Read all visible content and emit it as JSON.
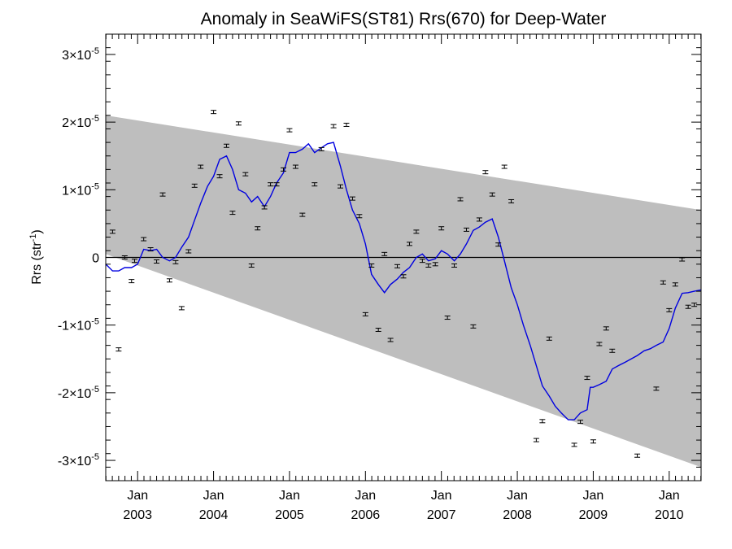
{
  "chart_data": {
    "type": "scatter",
    "title": "Anomaly in SeaWiFS(ST81) Rrs(670) for Deep-Water",
    "ylabel": "Rrs (str",
    "ylabel_exponent": "-1",
    "ylabel_close": ")",
    "y_unit": "1e-5",
    "ylim": [
      -3.3,
      3.3
    ],
    "xlim": [
      2002.58,
      2010.42
    ],
    "x_ticks_top": [
      "Jan",
      "Jan",
      "Jan",
      "Jan",
      "Jan",
      "Jan",
      "Jan",
      "Jan"
    ],
    "x_ticks_bottom": [
      "2003",
      "2004",
      "2005",
      "2006",
      "2007",
      "2008",
      "2009",
      "2010"
    ],
    "x_tick_values": [
      2003,
      2004,
      2005,
      2006,
      2007,
      2008,
      2009,
      2010
    ],
    "y_tick_values": [
      -3,
      -2,
      -1,
      0,
      1,
      2,
      3
    ],
    "y_tick_labels": [
      {
        "mant": "-3×10",
        "exp": "-5"
      },
      {
        "mant": "-2×10",
        "exp": "-5"
      },
      {
        "mant": "-1×10",
        "exp": "-5"
      },
      {
        "mant": "0",
        "exp": ""
      },
      {
        "mant": "1×10",
        "exp": "-5"
      },
      {
        "mant": "2×10",
        "exp": "-5"
      },
      {
        "mant": "3×10",
        "exp": "-5"
      }
    ],
    "band": {
      "upper": [
        [
          2002.58,
          2.1
        ],
        [
          2010.42,
          0.7
        ]
      ],
      "lower": [
        [
          2002.58,
          0.05
        ],
        [
          2010.42,
          -3.1
        ]
      ]
    },
    "colors": {
      "band": "#bebebe",
      "line": "#0000e0",
      "points": "#000000",
      "zero_line": "#000000"
    },
    "points": [
      [
        2002.67,
        0.38
      ],
      [
        2002.75,
        -1.36
      ],
      [
        2002.83,
        0.0
      ],
      [
        2002.92,
        -0.35
      ],
      [
        2002.96,
        -0.05
      ],
      [
        2003.08,
        0.27
      ],
      [
        2003.17,
        0.12
      ],
      [
        2003.25,
        -0.06
      ],
      [
        2003.33,
        0.93
      ],
      [
        2003.42,
        -0.34
      ],
      [
        2003.5,
        -0.07
      ],
      [
        2003.58,
        -0.75
      ],
      [
        2003.67,
        0.09
      ],
      [
        2003.75,
        1.06
      ],
      [
        2003.83,
        1.34
      ],
      [
        2004.0,
        2.15
      ],
      [
        2004.08,
        1.2
      ],
      [
        2004.17,
        1.65
      ],
      [
        2004.25,
        0.66
      ],
      [
        2004.33,
        1.98
      ],
      [
        2004.42,
        1.23
      ],
      [
        2004.5,
        -0.12
      ],
      [
        2004.58,
        0.43
      ],
      [
        2004.67,
        0.74
      ],
      [
        2004.75,
        1.08
      ],
      [
        2004.83,
        1.08
      ],
      [
        2004.92,
        1.3
      ],
      [
        2005.0,
        1.88
      ],
      [
        2005.08,
        1.34
      ],
      [
        2005.17,
        0.63
      ],
      [
        2005.33,
        1.08
      ],
      [
        2005.42,
        1.6
      ],
      [
        2005.58,
        1.94
      ],
      [
        2005.67,
        1.05
      ],
      [
        2005.75,
        1.96
      ],
      [
        2005.83,
        0.87
      ],
      [
        2005.92,
        0.61
      ],
      [
        2006.0,
        -0.84
      ],
      [
        2006.08,
        -0.12
      ],
      [
        2006.17,
        -1.07
      ],
      [
        2006.25,
        0.05
      ],
      [
        2006.33,
        -1.22
      ],
      [
        2006.42,
        -0.13
      ],
      [
        2006.5,
        -0.28
      ],
      [
        2006.58,
        0.2
      ],
      [
        2006.67,
        0.38
      ],
      [
        2006.75,
        -0.05
      ],
      [
        2006.83,
        -0.12
      ],
      [
        2006.92,
        -0.1
      ],
      [
        2007.0,
        0.43
      ],
      [
        2007.08,
        -0.89
      ],
      [
        2007.17,
        -0.12
      ],
      [
        2007.25,
        0.86
      ],
      [
        2007.33,
        0.41
      ],
      [
        2007.42,
        -1.02
      ],
      [
        2007.5,
        0.56
      ],
      [
        2007.58,
        1.26
      ],
      [
        2007.67,
        0.93
      ],
      [
        2007.75,
        0.19
      ],
      [
        2007.83,
        1.34
      ],
      [
        2007.92,
        0.83
      ],
      [
        2008.25,
        -2.7
      ],
      [
        2008.33,
        -2.42
      ],
      [
        2008.42,
        -1.2
      ],
      [
        2008.75,
        -2.77
      ],
      [
        2008.83,
        -2.43
      ],
      [
        2008.92,
        -1.78
      ],
      [
        2009.0,
        -2.72
      ],
      [
        2009.08,
        -1.28
      ],
      [
        2009.17,
        -1.05
      ],
      [
        2009.25,
        -1.38
      ],
      [
        2009.58,
        -2.93
      ],
      [
        2009.83,
        -1.94
      ],
      [
        2009.92,
        -0.37
      ],
      [
        2010.0,
        -0.78
      ],
      [
        2010.08,
        -0.4
      ],
      [
        2010.17,
        -0.03
      ],
      [
        2010.25,
        -0.73
      ],
      [
        2010.33,
        -0.7
      ]
    ],
    "line": [
      [
        2002.58,
        -0.1
      ],
      [
        2002.67,
        -0.2
      ],
      [
        2002.75,
        -0.2
      ],
      [
        2002.83,
        -0.15
      ],
      [
        2002.92,
        -0.15
      ],
      [
        2003.0,
        -0.1
      ],
      [
        2003.08,
        0.12
      ],
      [
        2003.17,
        0.1
      ],
      [
        2003.25,
        0.12
      ],
      [
        2003.33,
        0.0
      ],
      [
        2003.42,
        -0.05
      ],
      [
        2003.5,
        0.0
      ],
      [
        2003.58,
        0.15
      ],
      [
        2003.67,
        0.3
      ],
      [
        2003.75,
        0.55
      ],
      [
        2003.83,
        0.8
      ],
      [
        2003.92,
        1.05
      ],
      [
        2004.0,
        1.2
      ],
      [
        2004.08,
        1.45
      ],
      [
        2004.17,
        1.5
      ],
      [
        2004.25,
        1.3
      ],
      [
        2004.33,
        1.0
      ],
      [
        2004.42,
        0.95
      ],
      [
        2004.5,
        0.82
      ],
      [
        2004.58,
        0.9
      ],
      [
        2004.67,
        0.75
      ],
      [
        2004.75,
        0.9
      ],
      [
        2004.83,
        1.1
      ],
      [
        2004.92,
        1.25
      ],
      [
        2005.0,
        1.55
      ],
      [
        2005.08,
        1.55
      ],
      [
        2005.17,
        1.6
      ],
      [
        2005.25,
        1.68
      ],
      [
        2005.33,
        1.55
      ],
      [
        2005.42,
        1.62
      ],
      [
        2005.5,
        1.68
      ],
      [
        2005.58,
        1.7
      ],
      [
        2005.67,
        1.35
      ],
      [
        2005.75,
        1.0
      ],
      [
        2005.83,
        0.7
      ],
      [
        2005.92,
        0.5
      ],
      [
        2006.0,
        0.2
      ],
      [
        2006.08,
        -0.25
      ],
      [
        2006.17,
        -0.4
      ],
      [
        2006.25,
        -0.52
      ],
      [
        2006.33,
        -0.4
      ],
      [
        2006.42,
        -0.32
      ],
      [
        2006.5,
        -0.22
      ],
      [
        2006.58,
        -0.15
      ],
      [
        2006.67,
        0.0
      ],
      [
        2006.75,
        0.05
      ],
      [
        2006.83,
        -0.05
      ],
      [
        2006.92,
        -0.02
      ],
      [
        2007.0,
        0.1
      ],
      [
        2007.08,
        0.05
      ],
      [
        2007.17,
        -0.05
      ],
      [
        2007.25,
        0.05
      ],
      [
        2007.33,
        0.2
      ],
      [
        2007.42,
        0.4
      ],
      [
        2007.5,
        0.45
      ],
      [
        2007.58,
        0.52
      ],
      [
        2007.67,
        0.57
      ],
      [
        2007.75,
        0.3
      ],
      [
        2007.83,
        -0.05
      ],
      [
        2007.92,
        -0.45
      ],
      [
        2008.0,
        -0.7
      ],
      [
        2008.08,
        -1.0
      ],
      [
        2008.17,
        -1.3
      ],
      [
        2008.25,
        -1.6
      ],
      [
        2008.33,
        -1.9
      ],
      [
        2008.42,
        -2.05
      ],
      [
        2008.5,
        -2.2
      ],
      [
        2008.58,
        -2.3
      ],
      [
        2008.67,
        -2.4
      ],
      [
        2008.75,
        -2.4
      ],
      [
        2008.83,
        -2.3
      ],
      [
        2008.92,
        -2.25
      ],
      [
        2008.96,
        -1.92
      ],
      [
        2009.0,
        -1.92
      ],
      [
        2009.08,
        -1.88
      ],
      [
        2009.17,
        -1.83
      ],
      [
        2009.25,
        -1.65
      ],
      [
        2009.33,
        -1.6
      ],
      [
        2009.42,
        -1.55
      ],
      [
        2009.5,
        -1.5
      ],
      [
        2009.58,
        -1.45
      ],
      [
        2009.67,
        -1.38
      ],
      [
        2009.75,
        -1.35
      ],
      [
        2009.83,
        -1.3
      ],
      [
        2009.92,
        -1.25
      ],
      [
        2010.0,
        -1.05
      ],
      [
        2010.08,
        -0.75
      ],
      [
        2010.17,
        -0.53
      ],
      [
        2010.25,
        -0.52
      ],
      [
        2010.33,
        -0.5
      ],
      [
        2010.42,
        -0.48
      ]
    ]
  }
}
